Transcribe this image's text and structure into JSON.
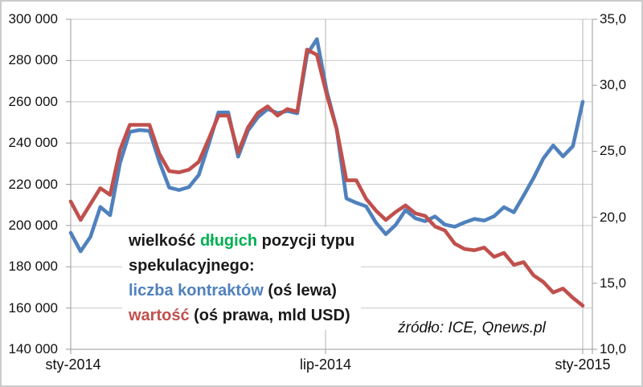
{
  "figure": {
    "source_note": "źródło: ICE, Qnews.pl",
    "colors": {
      "series_contracts_blue": "#4f81bd",
      "series_value_red": "#c0504d",
      "highlight_green": "#00b050",
      "text_black": "#1a1a1a",
      "gridline_gray": "#c9c9c9",
      "axis_gray": "#9b9b9b"
    }
  },
  "annotation": {
    "lines": [
      [
        {
          "text": "wielkość ",
          "color": "#1a1a1a"
        },
        {
          "text": "długich",
          "color": "#00b050"
        },
        {
          "text": " pozycji typu",
          "color": "#1a1a1a"
        }
      ],
      [
        {
          "text": "spekulacyjnego:",
          "color": "#1a1a1a"
        }
      ],
      [
        {
          "text": "liczba kontraktów",
          "color": "#4f81bd"
        },
        {
          "text": " (oś lewa)",
          "color": "#1a1a1a"
        }
      ],
      [
        {
          "text": "wartość",
          "color": "#c0504d"
        },
        {
          "text": " (oś prawa, mld USD)",
          "color": "#1a1a1a"
        }
      ]
    ]
  },
  "chart_data": {
    "type": "line",
    "title": "",
    "grid": true,
    "legend_position": "none",
    "x_tick_labels": [
      "sty-2014",
      "lip-2014",
      "sty-2015"
    ],
    "left_axis": {
      "min": 140000,
      "max": 300000,
      "step": 20000,
      "tick_labels": [
        "300 000",
        "280 000",
        "260 000",
        "240 000",
        "220 000",
        "200 000",
        "180 000",
        "160 000",
        "140 000"
      ]
    },
    "right_axis": {
      "min": 10,
      "max": 35,
      "step": 5,
      "tick_labels": [
        "35,0",
        "30,0",
        "25,0",
        "20,0",
        "15,0",
        "10,0"
      ]
    },
    "series": [
      {
        "name": "liczba kontraktów (oś lewa)",
        "axis": "left",
        "color": "#4f81bd",
        "values": [
          196500,
          187500,
          194500,
          209000,
          205000,
          230300,
          245400,
          246300,
          245900,
          230900,
          218400,
          217200,
          218600,
          224500,
          239200,
          254800,
          254800,
          233400,
          246000,
          252500,
          256500,
          254500,
          255500,
          254400,
          283000,
          290400,
          265200,
          247000,
          213100,
          211000,
          209300,
          201400,
          195800,
          200300,
          207500,
          203500,
          202100,
          204400,
          200400,
          199400,
          201500,
          203200,
          202400,
          204500,
          208900,
          206400,
          214500,
          223000,
          232500,
          238800,
          233500,
          238500,
          260000
        ]
      },
      {
        "name": "wartość (oś prawa, mld USD)",
        "axis": "right",
        "color": "#c0504d",
        "values": [
          21.2,
          19.8,
          21.0,
          22.2,
          21.7,
          25.1,
          27.0,
          27.0,
          27.0,
          24.8,
          23.5,
          23.4,
          23.6,
          24.2,
          25.9,
          27.7,
          27.7,
          24.9,
          26.8,
          27.9,
          28.4,
          27.7,
          28.2,
          28.0,
          32.7,
          32.3,
          29.3,
          26.7,
          22.8,
          22.8,
          21.4,
          20.5,
          19.8,
          20.4,
          20.9,
          20.3,
          20.1,
          19.3,
          19.0,
          18.0,
          17.6,
          17.5,
          17.7,
          17.0,
          17.3,
          16.4,
          16.6,
          15.6,
          15.1,
          14.3,
          14.6,
          13.9,
          13.3
        ]
      }
    ]
  }
}
